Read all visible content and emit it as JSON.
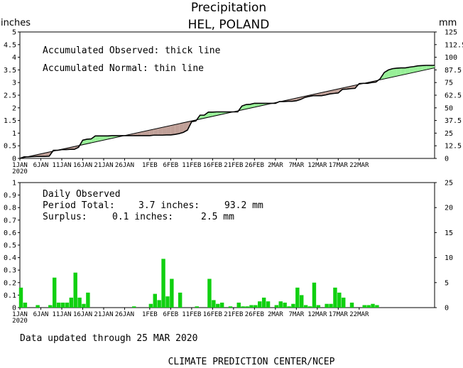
{
  "title": "Precipitation",
  "subtitle": "HEL, POLAND",
  "left_unit": "inches",
  "right_unit": "mm",
  "legend": {
    "observed": "Accumulated Observed: thick line",
    "normal": "Accumulated Normal: thin line"
  },
  "daily": {
    "title": "Daily Observed",
    "period_label": "Period Total:",
    "period_inches": "3.7 inches:",
    "period_mm": "93.2 mm",
    "surplus_label": "Surplus:",
    "surplus_inches": "0.1 inches:",
    "surplus_mm": "2.5 mm"
  },
  "updated": "Data updated through 25 MAR 2020",
  "credit": "CLIMATE PREDICTION CENTER/NCEP",
  "colors": {
    "surplus": "#98f098",
    "deficit": "#c0a098",
    "bars": "#10d010"
  },
  "chart_data": [
    {
      "type": "area",
      "x_ticks": [
        "1JAN",
        "6JAN",
        "11JAN",
        "16JAN",
        "21JAN",
        "26JAN",
        "1FEB",
        "6FEB",
        "11FEB",
        "16FEB",
        "21FEB",
        "26FEB",
        "2MAR",
        "7MAR",
        "12MAR",
        "17MAR",
        "22MAR"
      ],
      "x_year": "2020",
      "y_left_ticks": [
        "0",
        "0.5",
        "1",
        "1.5",
        "2",
        "2.5",
        "3",
        "3.5",
        "4",
        "4.5",
        "5"
      ],
      "y_right_ticks": [
        "0",
        "12.5",
        "25",
        "37.5",
        "50",
        "62.5",
        "75",
        "87.5",
        "100",
        "112.5",
        "125"
      ],
      "ylim": [
        0,
        5
      ],
      "series": [
        {
          "name": "Accumulated Observed",
          "points": [
            [
              0,
              0
            ],
            [
              1,
              0.06
            ],
            [
              2,
              0.06
            ],
            [
              3,
              0.07
            ],
            [
              4,
              0.08
            ],
            [
              5,
              0.08
            ],
            [
              6,
              0.08
            ],
            [
              7,
              0.09
            ],
            [
              8,
              0.32
            ],
            [
              9,
              0.32
            ],
            [
              10,
              0.35
            ],
            [
              11,
              0.35
            ],
            [
              12,
              0.36
            ],
            [
              13,
              0.36
            ],
            [
              14,
              0.44
            ],
            [
              15,
              0.72
            ],
            [
              16,
              0.76
            ],
            [
              17,
              0.77
            ],
            [
              18,
              0.89
            ],
            [
              19,
              0.89
            ],
            [
              20,
              0.89
            ],
            [
              21,
              0.89
            ],
            [
              22,
              0.9
            ],
            [
              23,
              0.9
            ],
            [
              24,
              0.9
            ],
            [
              25,
              0.9
            ],
            [
              26,
              0.9
            ],
            [
              27,
              0.9
            ],
            [
              28,
              0.9
            ],
            [
              29,
              0.9
            ],
            [
              30,
              0.9
            ],
            [
              31,
              0.9
            ],
            [
              32,
              0.92
            ],
            [
              33,
              0.92
            ],
            [
              34,
              0.92
            ],
            [
              35,
              0.93
            ],
            [
              36,
              0.93
            ],
            [
              37,
              0.95
            ],
            [
              38,
              0.98
            ],
            [
              39,
              1.03
            ],
            [
              40,
              1.12
            ],
            [
              41,
              1.45
            ],
            [
              42,
              1.48
            ],
            [
              43,
              1.71
            ],
            [
              44,
              1.71
            ],
            [
              45,
              1.83
            ],
            [
              46,
              1.83
            ],
            [
              47,
              1.84
            ],
            [
              48,
              1.84
            ],
            [
              49,
              1.84
            ],
            [
              50,
              1.84
            ],
            [
              51,
              1.84
            ],
            [
              52,
              1.84
            ],
            [
              53,
              2.07
            ],
            [
              54,
              2.13
            ],
            [
              55,
              2.14
            ],
            [
              56,
              2.18
            ],
            [
              57,
              2.18
            ],
            [
              58,
              2.18
            ],
            [
              59,
              2.18
            ],
            [
              60,
              2.18
            ],
            [
              61,
              2.18
            ],
            [
              62,
              2.25
            ],
            [
              63,
              2.25
            ],
            [
              64,
              2.26
            ],
            [
              65,
              2.26
            ],
            [
              66,
              2.28
            ],
            [
              67,
              2.33
            ],
            [
              68,
              2.41
            ],
            [
              69,
              2.45
            ],
            [
              70,
              2.48
            ],
            [
              71,
              2.48
            ],
            [
              72,
              2.48
            ],
            [
              73,
              2.51
            ],
            [
              74,
              2.55
            ],
            [
              75,
              2.57
            ],
            [
              76,
              2.59
            ],
            [
              77,
              2.73
            ],
            [
              78,
              2.74
            ],
            [
              79,
              2.76
            ],
            [
              80,
              2.77
            ],
            [
              81,
              2.96
            ],
            [
              82,
              2.97
            ],
            [
              83,
              2.97
            ],
            [
              84,
              3.0
            ],
            [
              85,
              3.02
            ],
            [
              86,
              3.15
            ],
            [
              87,
              3.4
            ],
            [
              88,
              3.5
            ],
            [
              89,
              3.55
            ],
            [
              90,
              3.57
            ],
            [
              91,
              3.58
            ],
            [
              92,
              3.58
            ],
            [
              93,
              3.61
            ],
            [
              94,
              3.63
            ],
            [
              95,
              3.66
            ],
            [
              96,
              3.67
            ],
            [
              97,
              3.68
            ],
            [
              98,
              3.68
            ],
            [
              99,
              3.68
            ]
          ]
        },
        {
          "name": "Accumulated Normal",
          "points": [
            [
              0,
              0
            ],
            [
              99,
              3.58
            ]
          ]
        }
      ]
    },
    {
      "type": "bar",
      "x_ticks": [
        "1JAN",
        "6JAN",
        "11JAN",
        "16JAN",
        "21JAN",
        "26JAN",
        "1FEB",
        "6FEB",
        "11FEB",
        "16FEB",
        "21FEB",
        "26FEB",
        "2MAR",
        "7MAR",
        "12MAR",
        "17MAR",
        "22MAR"
      ],
      "x_year": "2020",
      "y_left_ticks": [
        "0",
        "0.1",
        "0.2",
        "0.3",
        "0.4",
        "0.5",
        "0.6",
        "0.7",
        "0.8",
        "0.9",
        "1"
      ],
      "y_right_ticks": [
        "0",
        "5",
        "10",
        "15",
        "20",
        "25"
      ],
      "ylim": [
        0,
        1
      ],
      "bars": [
        [
          0,
          0.16
        ],
        [
          1,
          0.04
        ],
        [
          4,
          0.02
        ],
        [
          7,
          0.02
        ],
        [
          8,
          0.24
        ],
        [
          9,
          0.04
        ],
        [
          10,
          0.04
        ],
        [
          11,
          0.04
        ],
        [
          12,
          0.08
        ],
        [
          13,
          0.28
        ],
        [
          14,
          0.08
        ],
        [
          15,
          0.03
        ],
        [
          16,
          0.12
        ],
        [
          27,
          0.01
        ],
        [
          31,
          0.03
        ],
        [
          32,
          0.11
        ],
        [
          33,
          0.06
        ],
        [
          34,
          0.39
        ],
        [
          35,
          0.09
        ],
        [
          36,
          0.23
        ],
        [
          38,
          0.12
        ],
        [
          42,
          0.01
        ],
        [
          45,
          0.23
        ],
        [
          46,
          0.06
        ],
        [
          47,
          0.03
        ],
        [
          48,
          0.04
        ],
        [
          50,
          0.01
        ],
        [
          52,
          0.04
        ],
        [
          53,
          0.01
        ],
        [
          54,
          0.01
        ],
        [
          55,
          0.02
        ],
        [
          56,
          0.02
        ],
        [
          57,
          0.05
        ],
        [
          58,
          0.08
        ],
        [
          59,
          0.05
        ],
        [
          61,
          0.02
        ],
        [
          62,
          0.05
        ],
        [
          63,
          0.04
        ],
        [
          64,
          0.01
        ],
        [
          65,
          0.03
        ],
        [
          66,
          0.16
        ],
        [
          67,
          0.1
        ],
        [
          68,
          0.02
        ],
        [
          69,
          0.01
        ],
        [
          70,
          0.2
        ],
        [
          71,
          0.02
        ],
        [
          73,
          0.03
        ],
        [
          74,
          0.03
        ],
        [
          75,
          0.16
        ],
        [
          76,
          0.12
        ],
        [
          77,
          0.08
        ],
        [
          79,
          0.04
        ],
        [
          82,
          0.02
        ],
        [
          83,
          0.02
        ],
        [
          84,
          0.03
        ],
        [
          85,
          0.02
        ]
      ]
    }
  ]
}
